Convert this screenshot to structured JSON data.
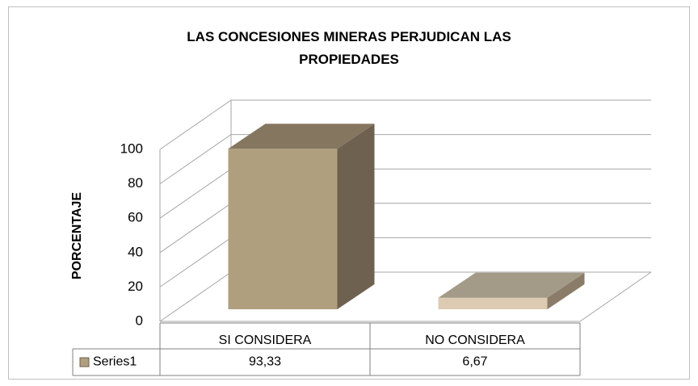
{
  "chart_data": {
    "type": "bar3d",
    "title": "LAS CONCESIONES MINERAS PERJUDICAN LAS PROPIEDADES",
    "y_label": "PORCENTAJE",
    "categories": [
      "SI CONSIDERA",
      "NO CONSIDERA"
    ],
    "series": [
      {
        "name": "Series1",
        "color": "#b09f7f",
        "values": [
          93.33,
          6.67
        ],
        "value_labels": [
          "93,33",
          "6,67"
        ]
      }
    ],
    "ylim": [
      0,
      100
    ],
    "yticks": [
      0,
      20,
      40,
      60,
      80,
      100
    ],
    "grid": true
  }
}
